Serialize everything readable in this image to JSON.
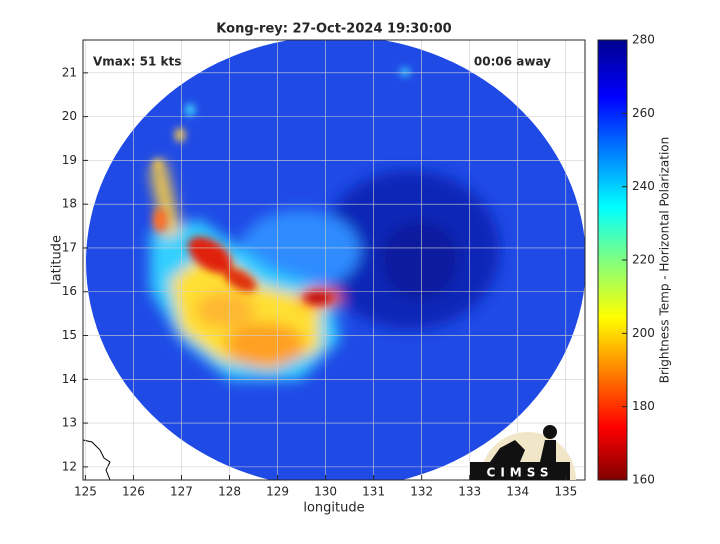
{
  "chart_data": {
    "type": "map",
    "title": "Kong-rey: 27-Oct-2024 19:30:00",
    "annotations": [
      "Vmax: 51 kts",
      "00:06 away"
    ],
    "xlabel": "longitude",
    "ylabel": "latitude",
    "xlim": [
      124.95,
      135.4
    ],
    "ylim": [
      11.7,
      21.75
    ],
    "xticks": [
      125,
      126,
      127,
      128,
      129,
      130,
      131,
      132,
      133,
      134,
      135
    ],
    "yticks": [
      12,
      13,
      14,
      15,
      16,
      17,
      18,
      19,
      20,
      21
    ],
    "grid": true,
    "colorbar": {
      "label": "Brightness Temp - Horizontal Polarization",
      "lim": [
        160,
        280
      ],
      "ticks": [
        160,
        180,
        200,
        220,
        240,
        260,
        280
      ]
    },
    "logo": "CIMSS"
  }
}
